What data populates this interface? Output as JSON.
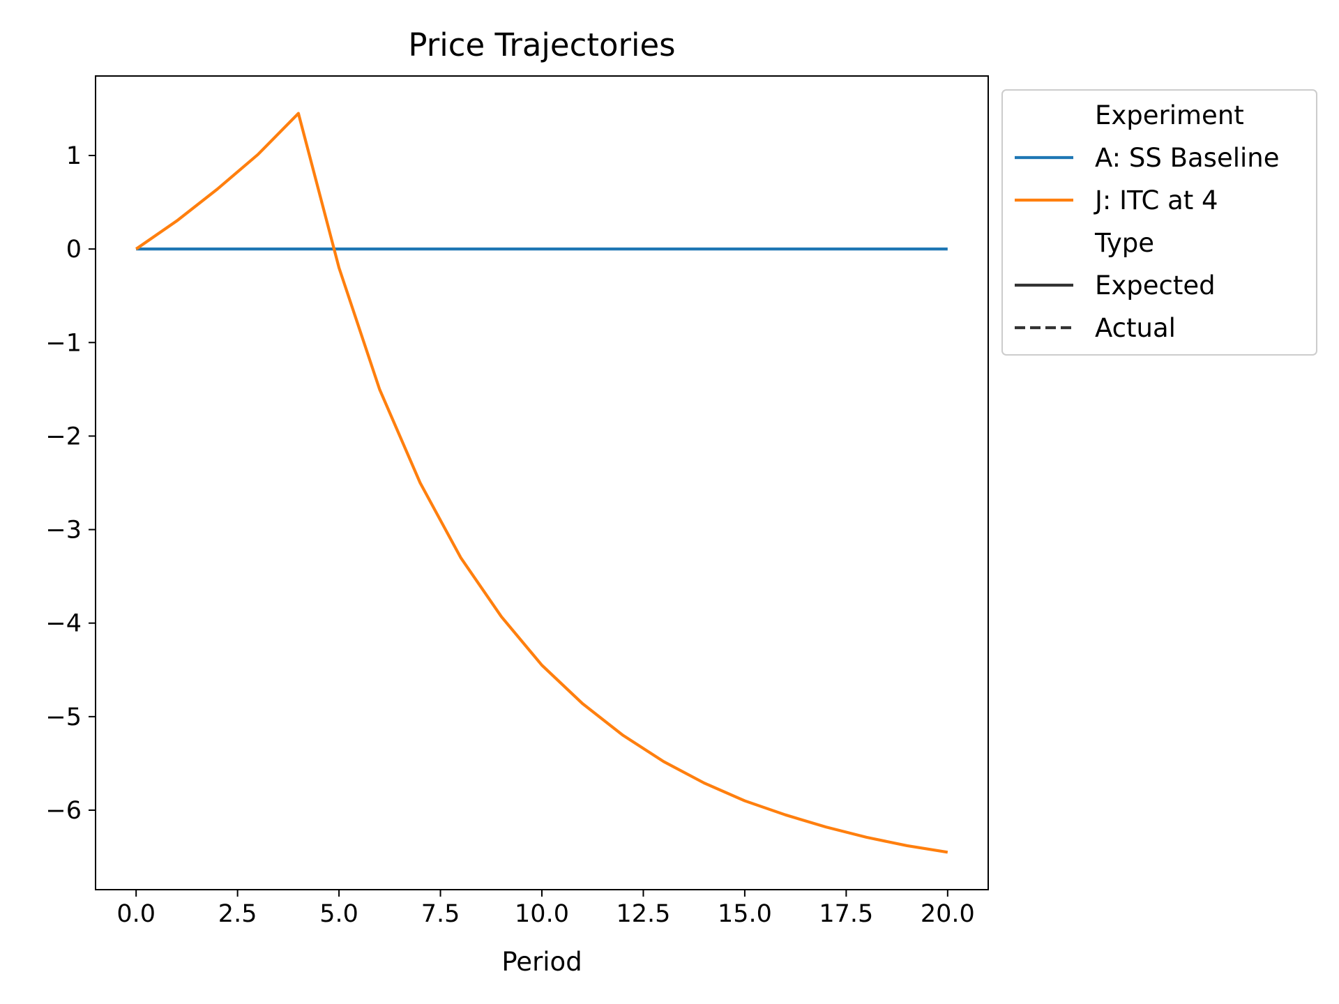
{
  "chart_data": {
    "type": "line",
    "title": "Price Trajectories",
    "xlabel": "Period",
    "ylabel": "",
    "xlim": [
      -1,
      21
    ],
    "ylim": [
      -6.85,
      1.85
    ],
    "x_ticks": [
      0.0,
      2.5,
      5.0,
      7.5,
      10.0,
      12.5,
      15.0,
      17.5,
      20.0
    ],
    "x_tick_labels": [
      "0.0",
      "2.5",
      "5.0",
      "7.5",
      "10.0",
      "12.5",
      "15.0",
      "17.5",
      "20.0"
    ],
    "y_ticks": [
      1,
      0,
      -1,
      -2,
      -3,
      -4,
      -5,
      -6
    ],
    "y_tick_labels": [
      "1",
      "0",
      "−1",
      "−2",
      "−3",
      "−4",
      "−5",
      "−6"
    ],
    "grid": false,
    "legend_position": "outside upper-right",
    "x": [
      0,
      1,
      2,
      3,
      4,
      5,
      6,
      7,
      8,
      9,
      10,
      11,
      12,
      13,
      14,
      15,
      16,
      17,
      18,
      19,
      20
    ],
    "series": [
      {
        "name": "A: SS Baseline",
        "style": "solid",
        "color": "#1f77b4",
        "values": [
          0,
          0,
          0,
          0,
          0,
          0,
          0,
          0,
          0,
          0,
          0,
          0,
          0,
          0,
          0,
          0,
          0,
          0,
          0,
          0,
          0
        ]
      },
      {
        "name": "J: ITC at 4",
        "style": "solid",
        "color": "#ff7f0e",
        "values": [
          0,
          0.3,
          0.64,
          1.01,
          1.45,
          -0.2,
          -1.5,
          -2.5,
          -3.3,
          -3.93,
          -4.45,
          -4.86,
          -5.2,
          -5.48,
          -5.71,
          -5.9,
          -6.05,
          -6.18,
          -6.29,
          -6.38,
          -6.45
        ]
      }
    ],
    "legend": {
      "groups": [
        {
          "title": "Experiment",
          "entries": [
            {
              "label": "A: SS Baseline",
              "color": "#1f77b4",
              "dash": "solid"
            },
            {
              "label": "J: ITC at 4",
              "color": "#ff7f0e",
              "dash": "solid"
            }
          ]
        },
        {
          "title": "Type",
          "entries": [
            {
              "label": "Expected",
              "color": "#333333",
              "dash": "solid"
            },
            {
              "label": "Actual",
              "color": "#333333",
              "dash": "dashed"
            }
          ]
        }
      ]
    }
  }
}
